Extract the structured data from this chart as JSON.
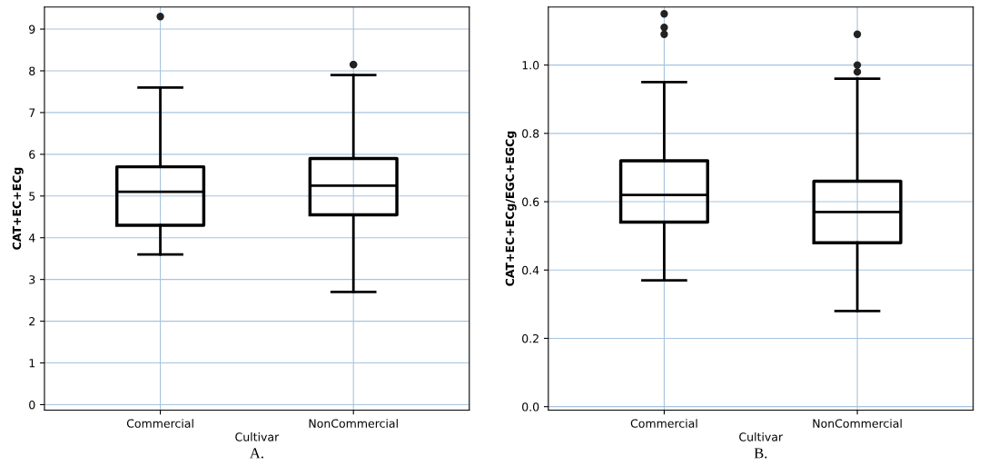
{
  "chart_data": [
    {
      "type": "box",
      "categories": [
        "Commercial",
        "NonCommercial"
      ],
      "xlabel": "Cultivar",
      "ylabel": "CAT+EC+ECg",
      "ylim": [
        -0.13,
        9.53
      ],
      "yticks": [
        0,
        1,
        2,
        3,
        4,
        5,
        6,
        7,
        8,
        9
      ],
      "grid": true,
      "annotations": [
        "A."
      ],
      "boxes": [
        {
          "low": 3.6,
          "q1": 4.3,
          "median": 5.1,
          "q3": 5.7,
          "high": 7.6,
          "outliers": [
            9.3
          ]
        },
        {
          "low": 2.7,
          "q1": 4.55,
          "median": 5.25,
          "q3": 5.9,
          "high": 7.9,
          "outliers": [
            8.15,
            8.15
          ]
        }
      ]
    },
    {
      "type": "box",
      "categories": [
        "Commercial",
        "NonCommercial"
      ],
      "xlabel": "Cultivar",
      "ylabel": "CAT+EC+ECg/EGC+EGCg",
      "ylim": [
        -0.01,
        1.17
      ],
      "yticks": [
        {
          "value": 0,
          "label": "0.0"
        },
        0.2,
        0.4,
        0.6,
        0.8,
        {
          "value": 1,
          "label": "1.0"
        }
      ],
      "grid": true,
      "annotations": [
        "B."
      ],
      "boxes": [
        {
          "low": 0.37,
          "q1": 0.54,
          "median": 0.62,
          "q3": 0.72,
          "high": 0.95,
          "outliers": [
            1.15,
            1.11,
            1.09
          ]
        },
        {
          "low": 0.28,
          "q1": 0.48,
          "median": 0.57,
          "q3": 0.66,
          "high": 0.96,
          "outliers": [
            1.09,
            1.0,
            0.98
          ]
        }
      ]
    }
  ]
}
